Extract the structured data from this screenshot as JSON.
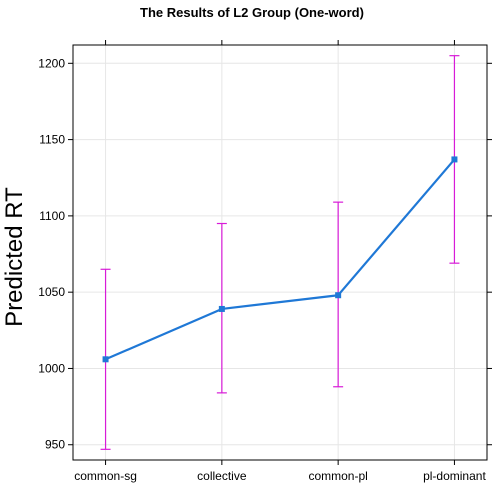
{
  "chart_data": {
    "type": "line",
    "title": "The Results of L2 Group (One-word)",
    "xlabel": "",
    "ylabel": "Predicted RT",
    "categories": [
      "common-sg",
      "collective",
      "common-pl",
      "pl-dominant"
    ],
    "values": [
      1006,
      1039,
      1048,
      1137
    ],
    "lower": [
      947,
      984,
      988,
      1069
    ],
    "upper": [
      1065,
      1095,
      1109,
      1205
    ],
    "yticks": [
      950,
      1000,
      1050,
      1100,
      1150,
      1200
    ],
    "ylim": [
      940,
      1212
    ],
    "grid": true,
    "colors": {
      "line": "#1f78d6",
      "errorbar": "#d81bd8",
      "grid": "#e6e6e6",
      "axis": "#000000"
    }
  }
}
